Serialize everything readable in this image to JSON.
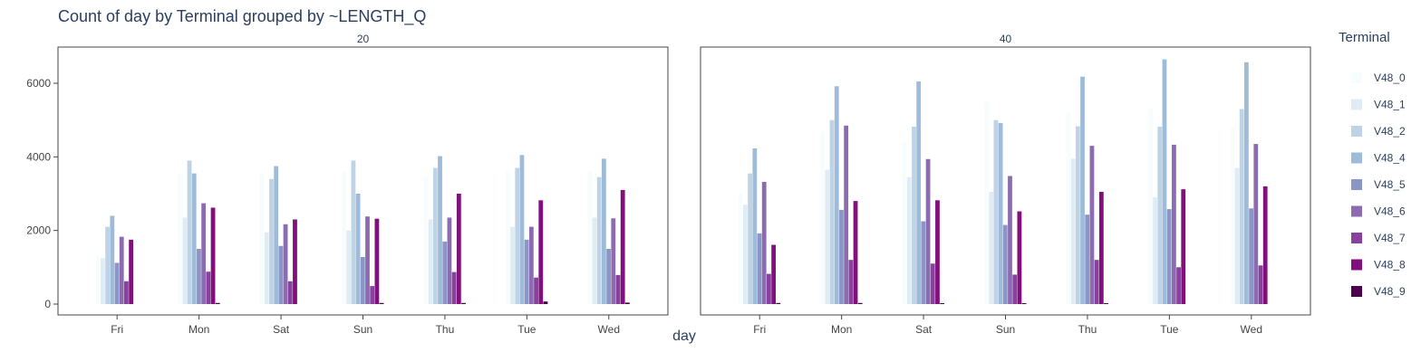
{
  "chart_data": {
    "type": "bar",
    "title": "Count of day by Terminal grouped by ~LENGTH_Q",
    "xlabel": "day",
    "ylabel": "",
    "ylim": [
      0,
      7000
    ],
    "yticks": [
      0,
      2000,
      4000,
      6000
    ],
    "categories": [
      "Fri",
      "Mon",
      "Sat",
      "Sun",
      "Thu",
      "Tue",
      "Wed"
    ],
    "legend": {
      "title": "Terminal",
      "position": "right"
    },
    "colors": [
      "#f7fcfd",
      "#e0ecf4",
      "#bfd3e6",
      "#9ebcda",
      "#8c96c6",
      "#8c6bb1",
      "#88419d",
      "#810f7c",
      "#4d004b"
    ],
    "series_names": [
      "V48_0",
      "V48_1",
      "V48_2",
      "V48_4",
      "V48_5",
      "V48_6",
      "V48_7",
      "V48_8",
      "V48_9"
    ],
    "facets": [
      {
        "label": "20",
        "series": [
          {
            "name": "V48_0",
            "values": [
              1300,
              3550,
              3550,
              3600,
              3450,
              3600,
              3600
            ]
          },
          {
            "name": "V48_1",
            "values": [
              1250,
              2350,
              1950,
              2000,
              2300,
              2100,
              2350
            ]
          },
          {
            "name": "V48_2",
            "values": [
              2100,
              3900,
              3400,
              3900,
              3700,
              3700,
              3450
            ]
          },
          {
            "name": "V48_4",
            "values": [
              2400,
              3550,
              3750,
              3000,
              4020,
              4050,
              3950
            ]
          },
          {
            "name": "V48_5",
            "values": [
              1120,
              1500,
              1580,
              1280,
              1700,
              1750,
              1500
            ]
          },
          {
            "name": "V48_6",
            "values": [
              1830,
              2740,
              2170,
              2380,
              2350,
              2100,
              2330
            ]
          },
          {
            "name": "V48_7",
            "values": [
              620,
              880,
              620,
              490,
              870,
              720,
              790
            ]
          },
          {
            "name": "V48_8",
            "values": [
              1750,
              2620,
              2300,
              2320,
              3000,
              2820,
              3100
            ]
          },
          {
            "name": "V48_9",
            "values": [
              0,
              30,
              0,
              30,
              30,
              70,
              40
            ]
          }
        ]
      },
      {
        "label": "40",
        "series": [
          {
            "name": "V48_0",
            "values": [
              3000,
              4700,
              4400,
              5500,
              5200,
              5300,
              4800
            ]
          },
          {
            "name": "V48_1",
            "values": [
              2700,
              3650,
              3450,
              3050,
              3950,
              2900,
              3700
            ]
          },
          {
            "name": "V48_2",
            "values": [
              3550,
              5000,
              4820,
              5000,
              4830,
              4820,
              5300
            ]
          },
          {
            "name": "V48_4",
            "values": [
              4230,
              5920,
              6050,
              4920,
              6180,
              6650,
              6570
            ]
          },
          {
            "name": "V48_5",
            "values": [
              1920,
              2560,
              2250,
              2150,
              2430,
              2580,
              2600
            ]
          },
          {
            "name": "V48_6",
            "values": [
              3320,
              4850,
              3940,
              3480,
              4300,
              4330,
              4350
            ]
          },
          {
            "name": "V48_7",
            "values": [
              820,
              1200,
              1100,
              800,
              1200,
              1000,
              1050
            ]
          },
          {
            "name": "V48_8",
            "values": [
              1610,
              2800,
              2820,
              2520,
              3050,
              3120,
              3200
            ]
          },
          {
            "name": "V48_9",
            "values": [
              30,
              30,
              20,
              20,
              20,
              0,
              0
            ]
          }
        ]
      }
    ]
  }
}
